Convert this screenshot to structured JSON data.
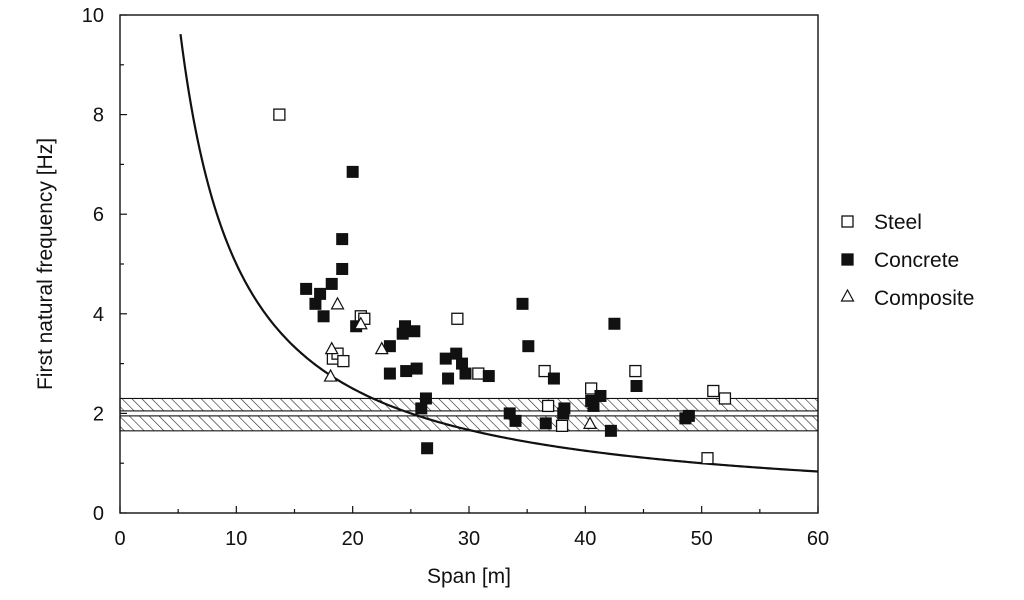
{
  "chart_data": {
    "type": "scatter",
    "title": "",
    "xlabel": "Span [m]",
    "ylabel": "First natural frequency [Hz]",
    "xlim": [
      0,
      60
    ],
    "ylim": [
      0,
      10
    ],
    "xticks": [
      "0",
      "10",
      "20",
      "30",
      "40",
      "50",
      "60"
    ],
    "yticks": [
      "0",
      "2",
      "4",
      "6",
      "8",
      "10"
    ],
    "grid": false,
    "legend_position": "right",
    "series": [
      {
        "name": "Steel",
        "marker": "open-square",
        "points": [
          [
            13.7,
            8.0
          ],
          [
            18.3,
            3.1
          ],
          [
            18.7,
            3.2
          ],
          [
            19.2,
            3.05
          ],
          [
            20.7,
            3.95
          ],
          [
            21.0,
            3.9
          ],
          [
            29.0,
            3.9
          ],
          [
            30.8,
            2.8
          ],
          [
            36.5,
            2.85
          ],
          [
            36.8,
            2.15
          ],
          [
            38.0,
            1.75
          ],
          [
            40.5,
            2.5
          ],
          [
            44.3,
            2.85
          ],
          [
            50.5,
            1.1
          ],
          [
            51.0,
            2.45
          ],
          [
            52.0,
            2.3
          ]
        ]
      },
      {
        "name": "Concrete",
        "marker": "filled-square",
        "points": [
          [
            16.0,
            4.5
          ],
          [
            16.8,
            4.2
          ],
          [
            17.2,
            4.4
          ],
          [
            17.5,
            3.95
          ],
          [
            18.2,
            4.6
          ],
          [
            19.1,
            5.5
          ],
          [
            19.1,
            4.9
          ],
          [
            20.0,
            6.85
          ],
          [
            20.3,
            3.75
          ],
          [
            23.2,
            3.35
          ],
          [
            23.2,
            2.8
          ],
          [
            24.3,
            3.6
          ],
          [
            24.5,
            3.75
          ],
          [
            24.6,
            2.85
          ],
          [
            25.3,
            3.65
          ],
          [
            25.5,
            2.9
          ],
          [
            25.9,
            2.1
          ],
          [
            26.3,
            2.3
          ],
          [
            26.4,
            1.3
          ],
          [
            28.0,
            3.1
          ],
          [
            28.2,
            2.7
          ],
          [
            28.9,
            3.2
          ],
          [
            29.4,
            3.0
          ],
          [
            29.7,
            2.8
          ],
          [
            31.7,
            2.75
          ],
          [
            33.5,
            2.0
          ],
          [
            34.0,
            1.85
          ],
          [
            34.6,
            4.2
          ],
          [
            35.1,
            3.35
          ],
          [
            36.6,
            1.8
          ],
          [
            37.3,
            2.7
          ],
          [
            38.1,
            2.0
          ],
          [
            38.2,
            2.1
          ],
          [
            40.5,
            2.25
          ],
          [
            40.7,
            2.15
          ],
          [
            41.3,
            2.35
          ],
          [
            42.2,
            1.65
          ],
          [
            42.5,
            3.8
          ],
          [
            44.4,
            2.55
          ],
          [
            48.6,
            1.9
          ],
          [
            48.9,
            1.95
          ]
        ]
      },
      {
        "name": "Composite",
        "marker": "open-triangle",
        "points": [
          [
            18.1,
            2.75
          ],
          [
            18.2,
            3.3
          ],
          [
            18.7,
            4.2
          ],
          [
            20.7,
            3.8
          ],
          [
            22.5,
            3.3
          ],
          [
            40.4,
            1.8
          ]
        ]
      }
    ],
    "curve": {
      "name": "fit curve",
      "formula": "f = 50 / L^1.0",
      "x_range": [
        5.2,
        60
      ]
    },
    "hatched_bands": [
      {
        "ymin": 1.65,
        "ymax": 1.95
      },
      {
        "ymin": 2.05,
        "ymax": 2.3
      }
    ]
  }
}
